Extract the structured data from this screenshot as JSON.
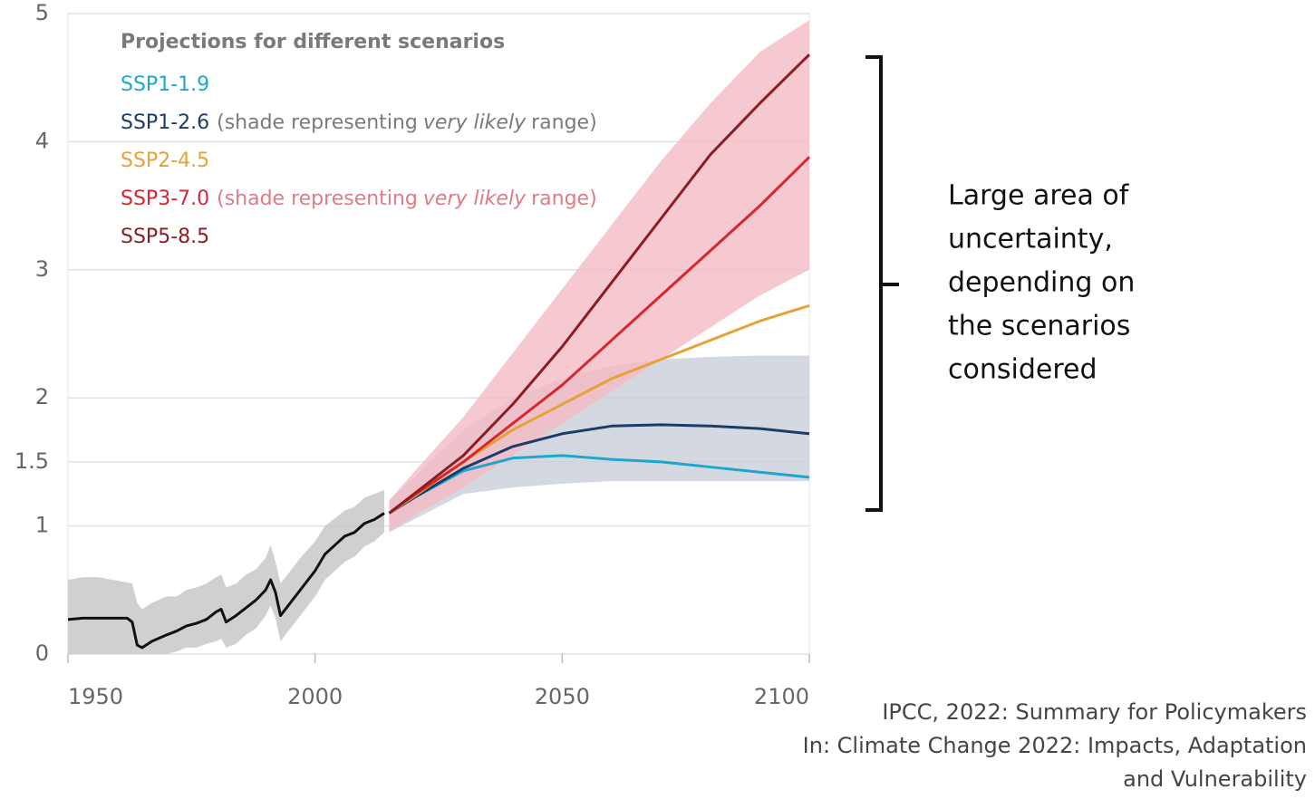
{
  "chart_data": {
    "type": "line",
    "legend_title": "Projections for different scenarios",
    "xlim": [
      1950,
      2100
    ],
    "xticks": [
      1950,
      2000,
      2050,
      2100
    ],
    "ylim": [
      0,
      5
    ],
    "yticks": [
      0,
      1,
      1.5,
      2,
      3,
      4,
      5
    ],
    "grid": true,
    "series": [
      {
        "color": "#111111",
        "x": [
          1950,
          1953,
          1956,
          1959,
          1962,
          1963,
          1964,
          1965,
          1967,
          1970,
          1972,
          1974,
          1976,
          1978,
          1980,
          1981,
          1982,
          1984,
          1986,
          1988,
          1990,
          1991,
          1992,
          1993,
          1995,
          1997,
          2000,
          2002,
          2004,
          2006,
          2008,
          2010,
          2012,
          2014
        ],
        "values": [
          0.27,
          0.28,
          0.28,
          0.28,
          0.28,
          0.25,
          0.07,
          0.05,
          0.1,
          0.15,
          0.18,
          0.22,
          0.24,
          0.27,
          0.33,
          0.35,
          0.25,
          0.3,
          0.36,
          0.42,
          0.5,
          0.58,
          0.48,
          0.3,
          0.4,
          0.5,
          0.65,
          0.78,
          0.85,
          0.92,
          0.95,
          1.02,
          1.05,
          1.1
        ],
        "band": {
          "color": "#c4c4c4",
          "upper": [
            0.58,
            0.6,
            0.6,
            0.58,
            0.56,
            0.55,
            0.4,
            0.35,
            0.4,
            0.45,
            0.45,
            0.5,
            0.52,
            0.55,
            0.6,
            0.62,
            0.52,
            0.55,
            0.62,
            0.66,
            0.75,
            0.85,
            0.72,
            0.55,
            0.65,
            0.75,
            0.88,
            1.0,
            1.06,
            1.12,
            1.15,
            1.22,
            1.25,
            1.28
          ],
          "lower": [
            0,
            0,
            0,
            0,
            0,
            0,
            0,
            0,
            0,
            0,
            0.02,
            0.05,
            0.05,
            0.08,
            0.1,
            0.12,
            0.05,
            0.08,
            0.15,
            0.2,
            0.3,
            0.38,
            0.28,
            0.1,
            0.2,
            0.3,
            0.45,
            0.58,
            0.65,
            0.72,
            0.76,
            0.84,
            0.88,
            0.95
          ]
        }
      },
      {
        "name": "SSP1-1.9",
        "color": "#1ea6d0",
        "x": [
          2015,
          2020,
          2030,
          2040,
          2050,
          2060,
          2070,
          2080,
          2090,
          2100
        ],
        "values": [
          1.1,
          1.22,
          1.43,
          1.53,
          1.55,
          1.52,
          1.5,
          1.46,
          1.42,
          1.38
        ]
      },
      {
        "name": "SSP1-2.6",
        "color": "#1b3b68",
        "legend_note": {
          "before": "(shade representing",
          "emphasis": "very likely",
          "after": "range)",
          "color": "#7a7a7a"
        },
        "x": [
          2015,
          2020,
          2030,
          2040,
          2050,
          2060,
          2070,
          2080,
          2090,
          2100
        ],
        "values": [
          1.1,
          1.22,
          1.45,
          1.62,
          1.72,
          1.78,
          1.79,
          1.78,
          1.76,
          1.72
        ],
        "band": {
          "color": "#c9ced8",
          "upper": [
            1.2,
            1.38,
            1.75,
            2.0,
            2.15,
            2.25,
            2.3,
            2.32,
            2.33,
            2.33
          ],
          "lower": [
            0.95,
            1.05,
            1.25,
            1.3,
            1.33,
            1.35,
            1.35,
            1.35,
            1.35,
            1.35
          ]
        }
      },
      {
        "name": "SSP2-4.5",
        "color": "#e6a236",
        "x": [
          2015,
          2020,
          2030,
          2040,
          2050,
          2060,
          2070,
          2080,
          2090,
          2100
        ],
        "values": [
          1.1,
          1.23,
          1.5,
          1.75,
          1.95,
          2.15,
          2.3,
          2.45,
          2.6,
          2.72
        ]
      },
      {
        "name": "SSP3-7.0",
        "color": "#d6262f",
        "legend_note": {
          "before": "(shade representing",
          "emphasis": "very likely",
          "after": "range)",
          "color": "#e27a86"
        },
        "x": [
          2015,
          2020,
          2030,
          2040,
          2050,
          2060,
          2070,
          2080,
          2090,
          2100
        ],
        "values": [
          1.1,
          1.24,
          1.5,
          1.8,
          2.1,
          2.45,
          2.8,
          3.15,
          3.5,
          3.88
        ],
        "band": {
          "color": "#f4bcc4",
          "upper": [
            1.2,
            1.42,
            1.85,
            2.35,
            2.85,
            3.35,
            3.85,
            4.3,
            4.7,
            4.95
          ],
          "lower": [
            0.95,
            1.08,
            1.3,
            1.55,
            1.8,
            2.05,
            2.3,
            2.55,
            2.8,
            3.0
          ]
        }
      },
      {
        "name": "SSP5-8.5",
        "color": "#8b1c24",
        "x": [
          2015,
          2020,
          2030,
          2040,
          2050,
          2060,
          2070,
          2080,
          2090,
          2100
        ],
        "values": [
          1.1,
          1.25,
          1.55,
          1.95,
          2.4,
          2.9,
          3.4,
          3.9,
          4.3,
          4.68
        ]
      }
    ],
    "annotation": {
      "lines": [
        "Large area of",
        "uncertainty,",
        "depending on",
        "the scenarios",
        "considered"
      ]
    },
    "source": {
      "lines": [
        "IPCC, 2022: Summary for Policymakers",
        "In: Climate Change 2022: Impacts, Adaptation",
        "and Vulnerability"
      ]
    }
  }
}
